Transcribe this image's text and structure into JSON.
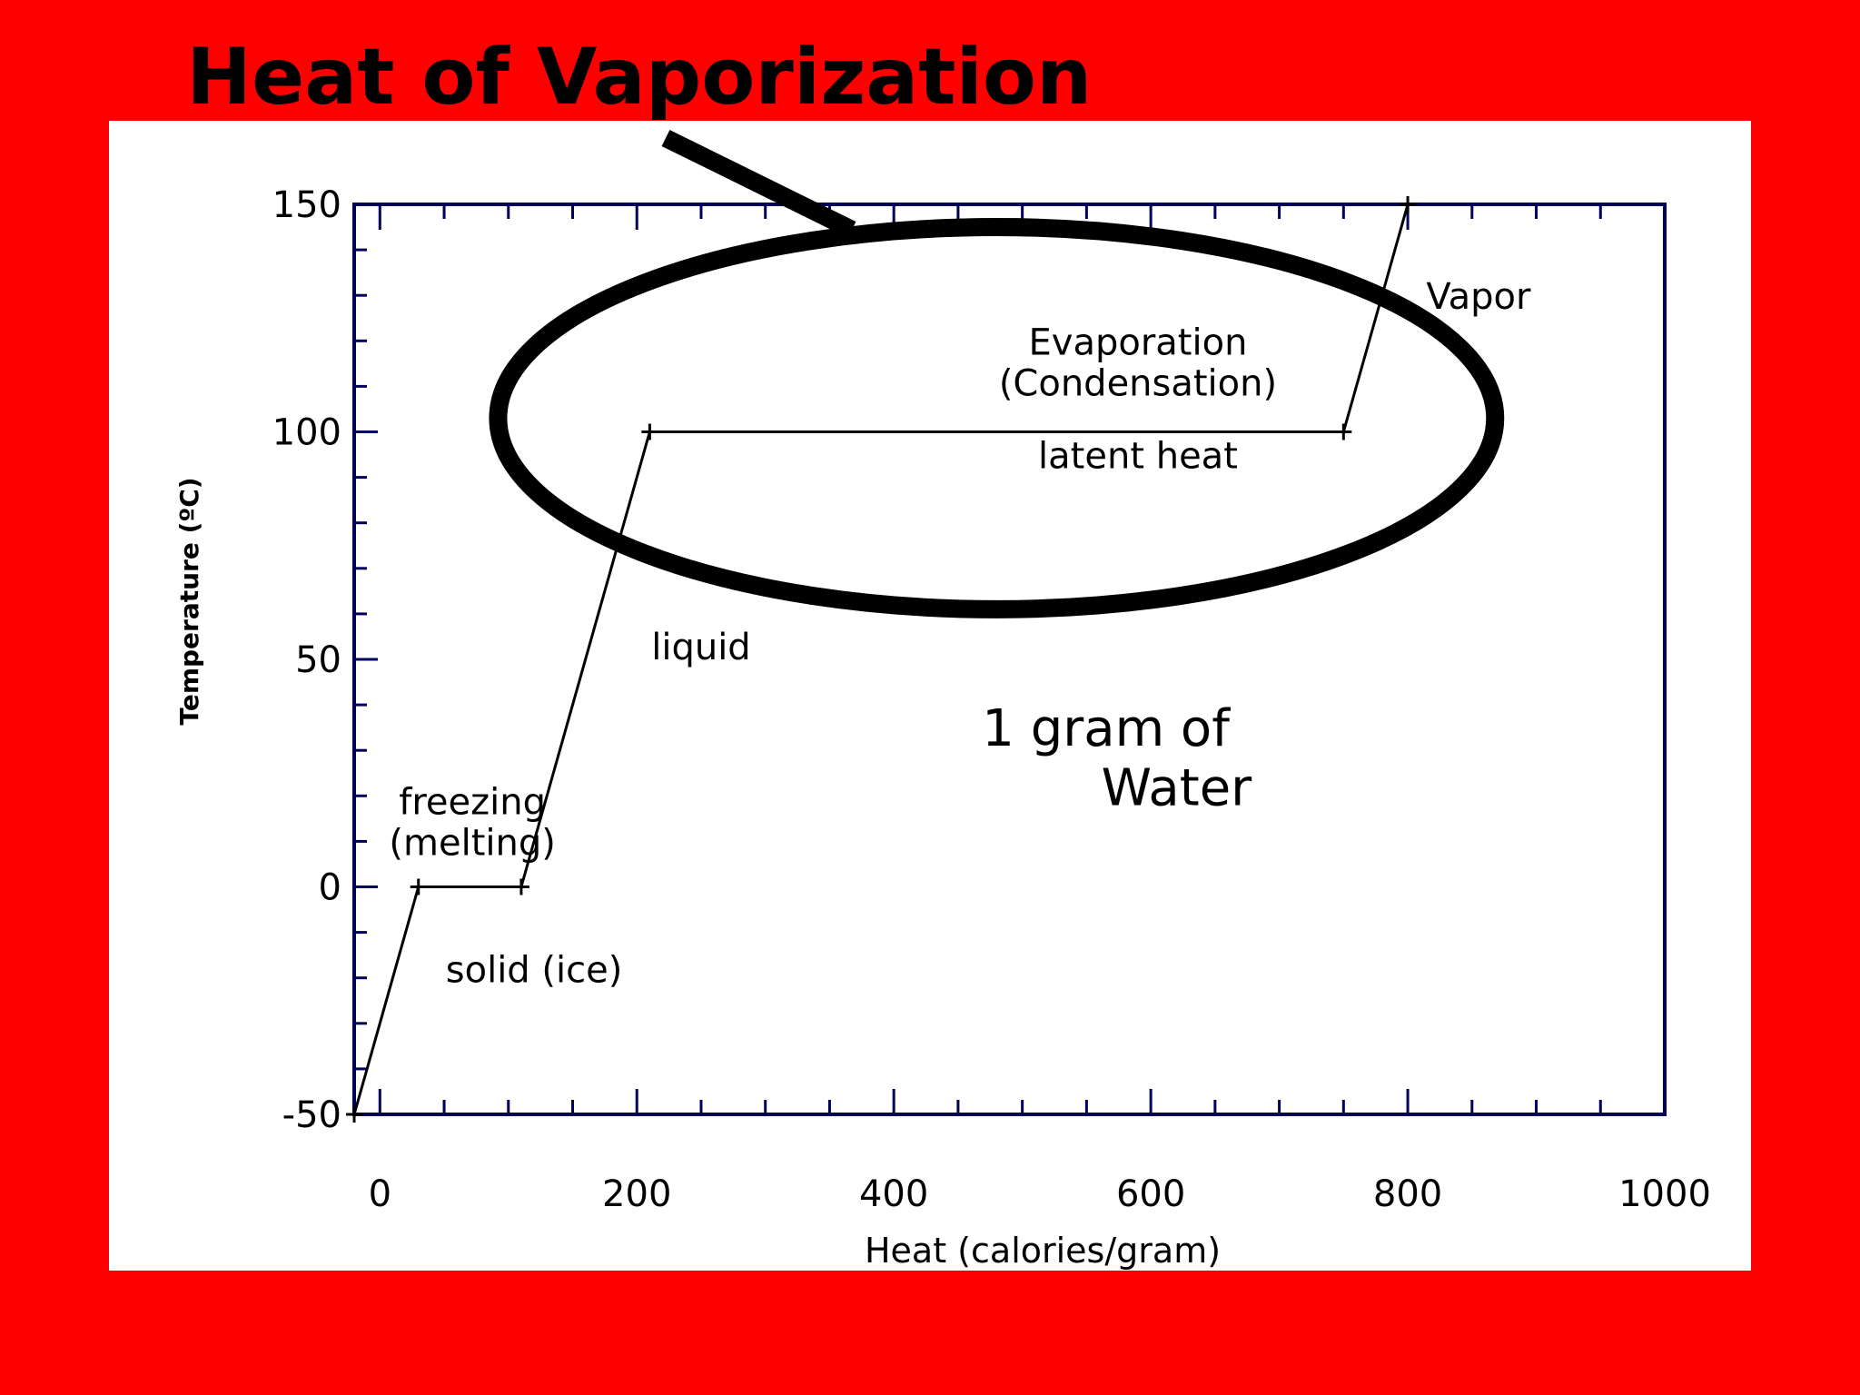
{
  "slide": {
    "title": "Heat of Vaporization",
    "background_color": "#ff0000"
  },
  "chart_data": {
    "type": "line",
    "title": "",
    "xlabel": "Heat (calories/gram)",
    "ylabel": "Temperature (ºC)",
    "xlim": [
      -20,
      1000
    ],
    "ylim": [
      -50,
      150
    ],
    "x_ticks": [
      0,
      200,
      400,
      600,
      800,
      1000
    ],
    "y_ticks": [
      -50,
      0,
      50,
      100,
      150
    ],
    "grid": false,
    "axis_color": "#00005a",
    "series": [
      {
        "points": [
          {
            "x": -20,
            "y": -50
          },
          {
            "x": 30,
            "y": 0
          },
          {
            "x": 110,
            "y": 0
          },
          {
            "x": 210,
            "y": 100
          },
          {
            "x": 750,
            "y": 100
          },
          {
            "x": 800,
            "y": 150
          }
        ]
      }
    ],
    "annotations": [
      {
        "text": "Vapor",
        "x": 855,
        "y": 127
      },
      {
        "text": "Evaporation",
        "x": 590,
        "y": 117
      },
      {
        "text": "(Condensation)",
        "x": 590,
        "y": 108
      },
      {
        "text": "latent heat",
        "x": 590,
        "y": 92
      },
      {
        "text": "liquid",
        "x": 250,
        "y": 50
      },
      {
        "text": "1 gram of",
        "x": 565,
        "y": 31
      },
      {
        "text": "Water",
        "x": 620,
        "y": 18
      },
      {
        "text": "freezing",
        "x": 72,
        "y": 16
      },
      {
        "text": "(melting)",
        "x": 72,
        "y": 7
      },
      {
        "text": "solid (ice)",
        "x": 120,
        "y": -21
      }
    ],
    "highlight": {
      "shape": "ellipse",
      "center": {
        "x": 480,
        "y": 103
      },
      "rx_data": 388,
      "ry_data": 42,
      "color": "#000000"
    }
  }
}
